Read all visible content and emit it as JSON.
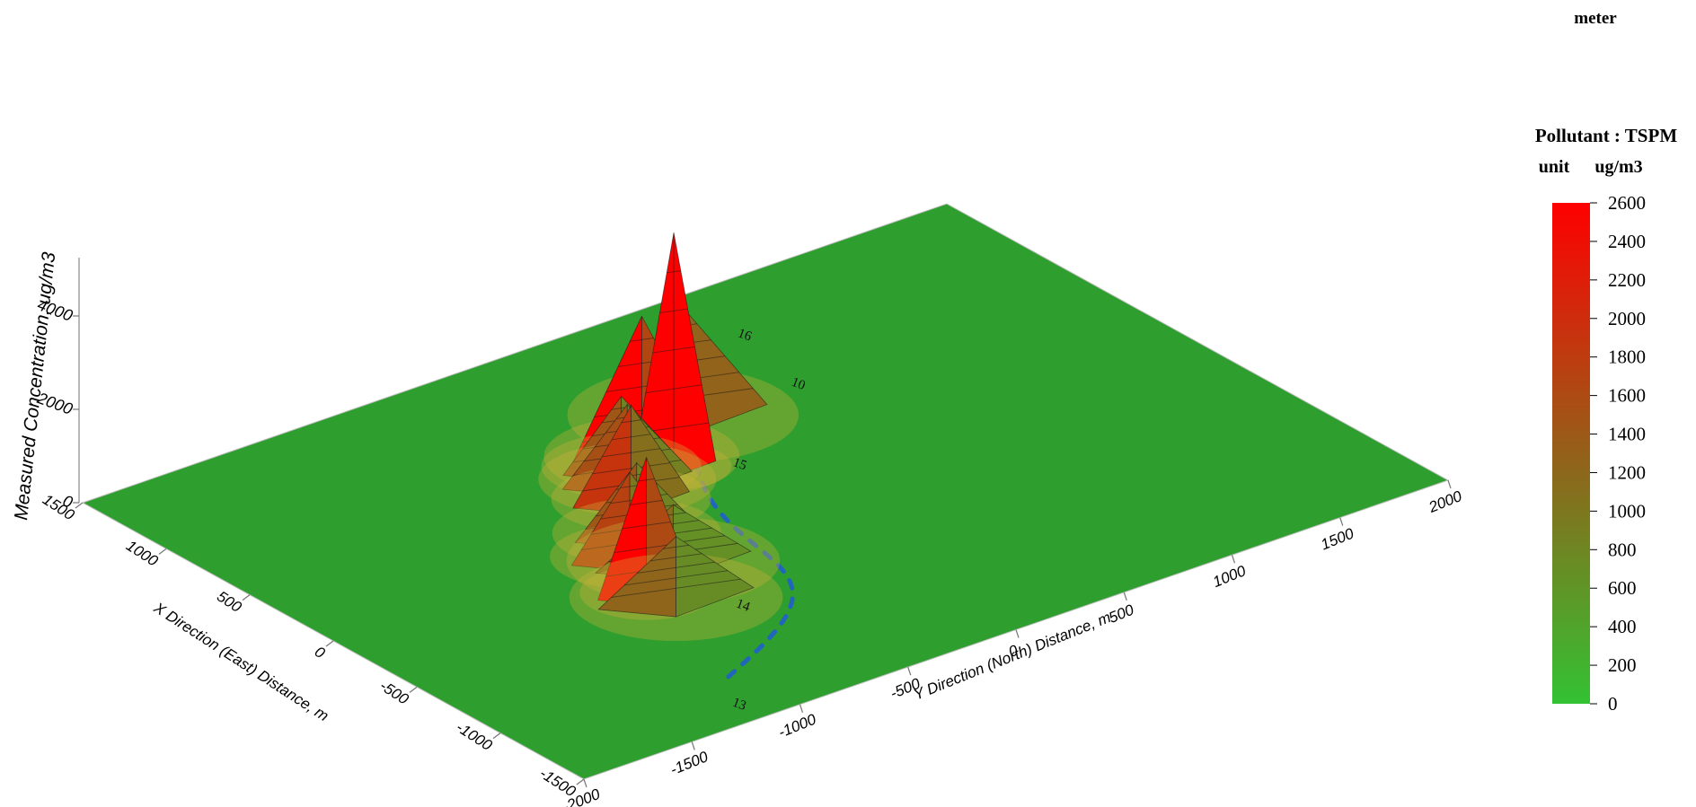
{
  "top_label": "meter",
  "chart_data": {
    "type": "surface",
    "title": "",
    "zlabel": "Measured Concentration, ug/m3",
    "xlabel": "X Direction (East) Distance, m",
    "ylabel": "Y Direction (North) Distance, m",
    "x_ticks": [
      -1500,
      -1000,
      -500,
      0,
      500,
      1000,
      1500
    ],
    "y_ticks": [
      -2000,
      -1500,
      -1000,
      -500,
      0,
      500,
      1000,
      1500,
      2000
    ],
    "z_ticks": [
      0,
      2000,
      4000
    ],
    "xlim": [
      -1500,
      1500
    ],
    "ylim": [
      -2000,
      2000
    ],
    "zlim": [
      0,
      5000
    ],
    "receptor_labels": [
      {
        "text": "13",
        "x": -1350,
        "y": -1200
      },
      {
        "text": "14",
        "x": -700,
        "y": -680
      },
      {
        "text": "15",
        "x": 250,
        "y": 40
      },
      {
        "text": "10",
        "x": 650,
        "y": 620
      },
      {
        "text": "16",
        "x": 1100,
        "y": 720
      }
    ],
    "peaks": [
      {
        "x": 380,
        "y": -130,
        "value": 5000,
        "width": 65
      },
      {
        "x": 520,
        "y": -170,
        "value": 3000,
        "width": 110
      },
      {
        "x": 700,
        "y": 160,
        "value": 2300,
        "width": 130
      },
      {
        "x": -400,
        "y": -860,
        "value": 2900,
        "width": 75
      },
      {
        "x": -120,
        "y": -720,
        "value": 1800,
        "width": 90
      },
      {
        "x": 20,
        "y": -580,
        "value": 1500,
        "width": 95
      },
      {
        "x": 260,
        "y": -420,
        "value": 2000,
        "width": 90
      },
      {
        "x": 400,
        "y": -330,
        "value": 1600,
        "width": 100
      },
      {
        "x": 500,
        "y": -280,
        "value": 1500,
        "width": 90
      },
      {
        "x": -500,
        "y": -800,
        "value": 1300,
        "width": 120
      },
      {
        "x": -250,
        "y": -620,
        "value": 1200,
        "width": 120
      }
    ]
  },
  "colorbar": {
    "title": "Pollutant : TSPM",
    "unit_label": "unit",
    "unit": "ug/m3",
    "ticks": [
      0,
      200,
      400,
      600,
      800,
      1000,
      1200,
      1400,
      1600,
      1800,
      2000,
      2200,
      2400,
      2600
    ],
    "range": [
      0,
      2600
    ],
    "color_low": "#33c233",
    "color_mid": "#8a6a1c",
    "color_high": "#ff0000"
  },
  "colors": {
    "ground": "#2e9e2e",
    "contour": "#1a1a1a",
    "low_contour": "#1f5bd6"
  }
}
